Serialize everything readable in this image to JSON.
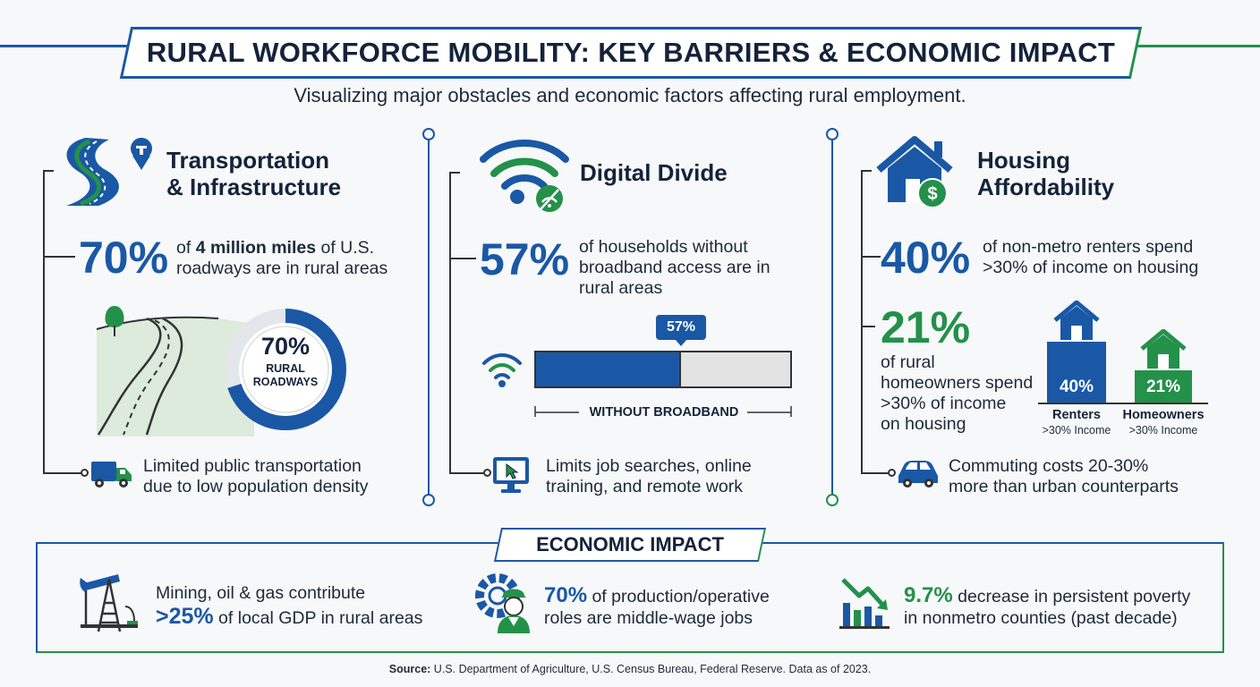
{
  "header": {
    "title": "RURAL WORKFORCE MOBILITY: KEY BARRIERS & ECONOMIC IMPACT",
    "subtitle": "Visualizing major obstacles and economic factors affecting rural employment."
  },
  "transportation": {
    "heading_line1": "Transportation",
    "heading_line2": "& Infrastructure",
    "stat_value": "70%",
    "stat_text_pre": "of ",
    "stat_text_bold": "4 million miles",
    "stat_text_post": " of U.S.",
    "stat_text_line2": "roadways are in rural areas",
    "donut_value": "70%",
    "donut_fraction": 0.7,
    "donut_label1": "RURAL",
    "donut_label2": "ROADWAYS",
    "note_line1": "Limited public transportation",
    "note_line2": "due to low population density"
  },
  "digital": {
    "heading": "Digital Divide",
    "stat_value": "57%",
    "stat_line1": "of households without",
    "stat_line2": "broadband access are in",
    "stat_line3": "rural areas",
    "bar_value": "57%",
    "bar_fraction": 0.57,
    "bar_label": "WITHOUT BROADBAND",
    "note_line1": "Limits job searches, online",
    "note_line2": "training, and remote work"
  },
  "housing": {
    "heading_line1": "Housing",
    "heading_line2": "Affordability",
    "stat1_value": "40%",
    "stat1_line1": "of non-metro renters spend",
    "stat1_line2": ">30% of income on housing",
    "stat2_value": "21%",
    "stat2_line1": "of rural",
    "stat2_line2": "homeowners spend",
    "stat2_line3": ">30% of income",
    "stat2_line4": "on housing",
    "bars": [
      {
        "value": "40%",
        "fraction": 0.4,
        "label": "Renters",
        "sublabel": ">30% Income",
        "color": "#1a58a6"
      },
      {
        "value": "21%",
        "fraction": 0.21,
        "label": "Homeowners",
        "sublabel": ">30% Income",
        "color": "#23914a"
      }
    ],
    "note_line1": "Commuting costs 20-30%",
    "note_line2": "more than urban counterparts"
  },
  "economic": {
    "title": "ECONOMIC IMPACT",
    "item1_line1": "Mining, oil & gas contribute",
    "item1_value": ">25%",
    "item1_line2": " of local GDP in rural areas",
    "item2_value": "70%",
    "item2_line1": " of production/operative",
    "item2_line2": "roles are middle-wage jobs",
    "item3_value": "9.7%",
    "item3_line1": " decrease in persistent poverty",
    "item3_line2": "in nonmetro counties (past decade)"
  },
  "source": {
    "label": "Source:",
    "text": " U.S. Department of Agriculture, U.S. Census Bureau, Federal Reserve. Data as of 2023."
  },
  "colors": {
    "blue": "#1a58a6",
    "green": "#23914a",
    "navy": "#14233a"
  }
}
